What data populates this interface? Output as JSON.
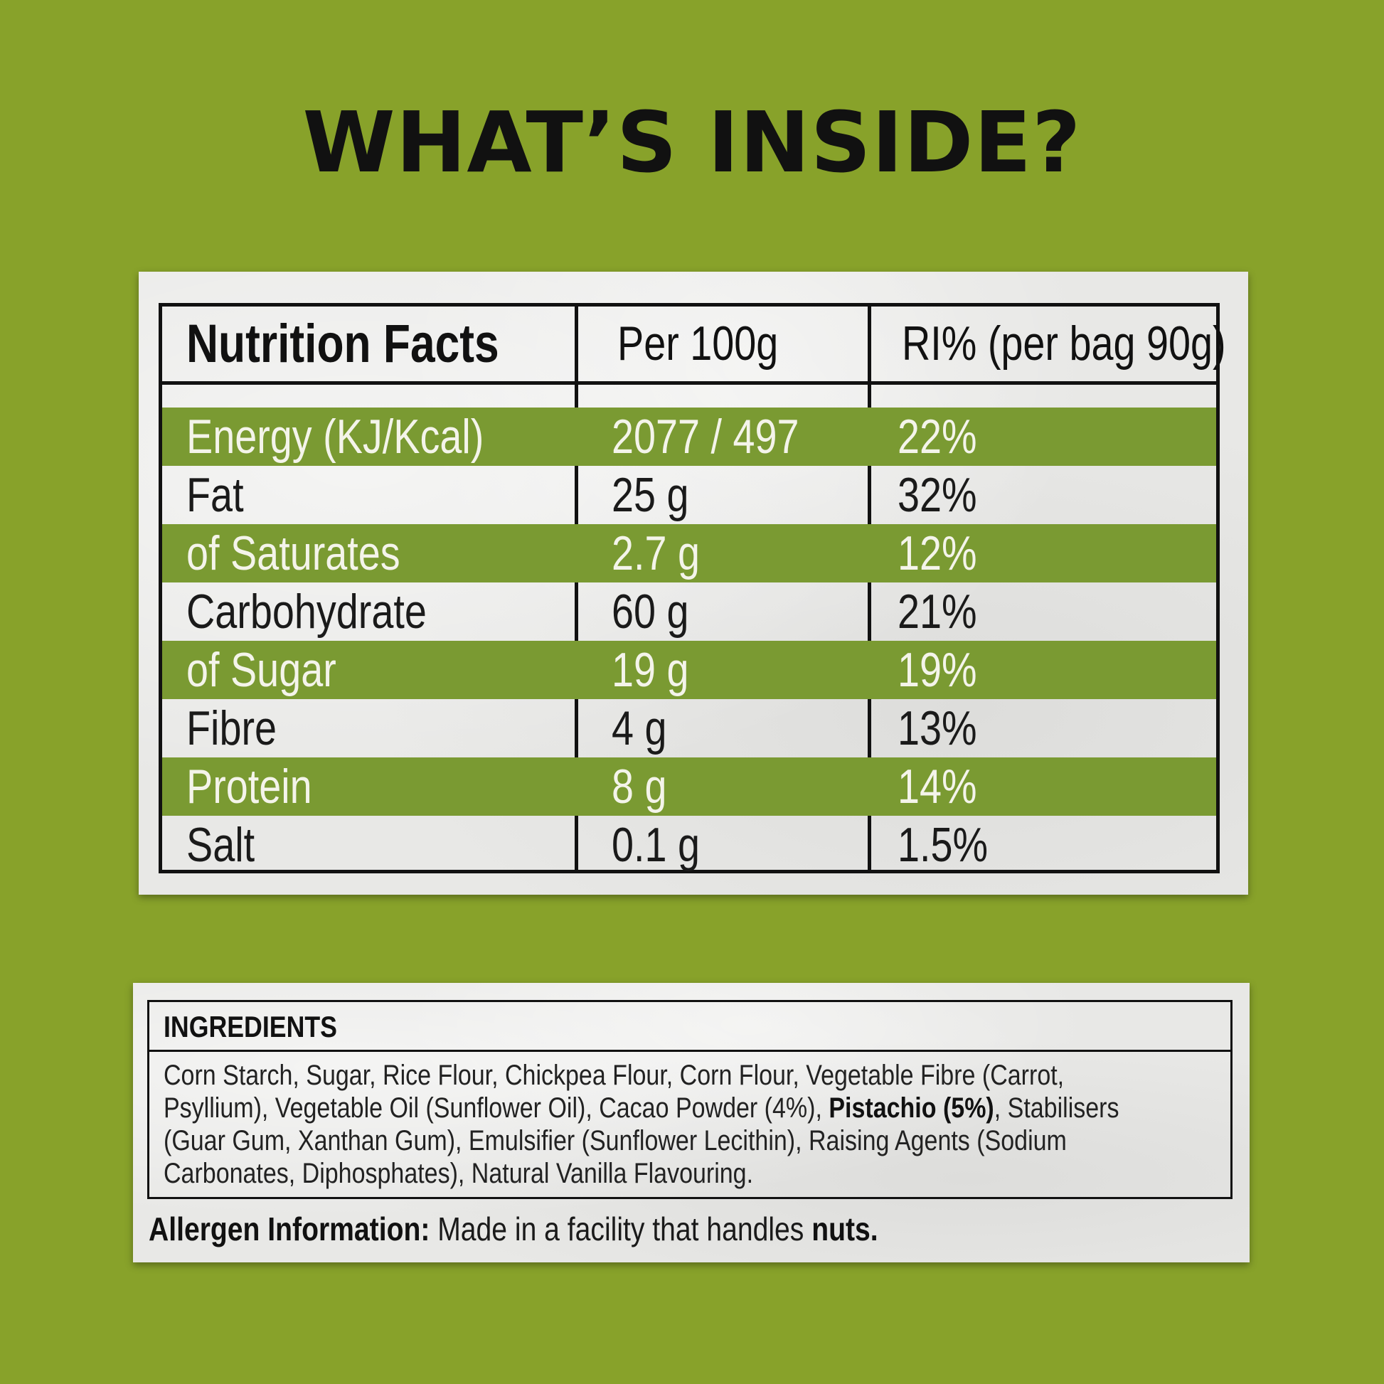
{
  "headline": "WHAT’S INSIDE?",
  "colors": {
    "background": "#88a22a",
    "row_highlight": "#7a9a32",
    "panel": "#e8e8e6",
    "text_dark": "#111111"
  },
  "nutrition": {
    "header": {
      "title": "Nutrition Facts",
      "col_per100": "Per 100g",
      "col_ri": "RI% (per bag 90g)"
    },
    "rows": [
      {
        "label": "Energy (KJ/Kcal)",
        "per100": "2077 / 497",
        "ri": "22%",
        "shaded": true
      },
      {
        "label": "Fat",
        "per100": "25 g",
        "ri": "32%",
        "shaded": false
      },
      {
        "label": "of Saturates",
        "per100": "2.7 g",
        "ri": "12%",
        "shaded": true
      },
      {
        "label": "Carbohydrate",
        "per100": "60 g",
        "ri": "21%",
        "shaded": false
      },
      {
        "label": "of Sugar",
        "per100": "19 g",
        "ri": "19%",
        "shaded": true
      },
      {
        "label": "Fibre",
        "per100": "4 g",
        "ri": "13%",
        "shaded": false
      },
      {
        "label": "Protein",
        "per100": "8 g",
        "ri": "14%",
        "shaded": true
      },
      {
        "label": "Salt",
        "per100": "0.1 g",
        "ri": "1.5%",
        "shaded": false
      }
    ]
  },
  "ingredients": {
    "title": "INGREDIENTS",
    "text_before_bold": "Corn Starch, Sugar, Rice Flour, Chickpea Flour, Corn Flour, Vegetable Fibre (Carrot, Psyllium), Vegetable Oil (Sunflower Oil), Cacao Powder (4%), ",
    "bold": "Pistachio (5%)",
    "text_after_bold": ", Stabilisers (Guar Gum, Xanthan Gum), Emulsifier (Sunflower Lecithin), Raising Agents (Sodium Carbonates, Diphosphates), Natural Vanilla Flavouring."
  },
  "allergen": {
    "label": "Allergen Information:",
    "text": " Made in a facility that handles ",
    "bold_end": "nuts."
  }
}
